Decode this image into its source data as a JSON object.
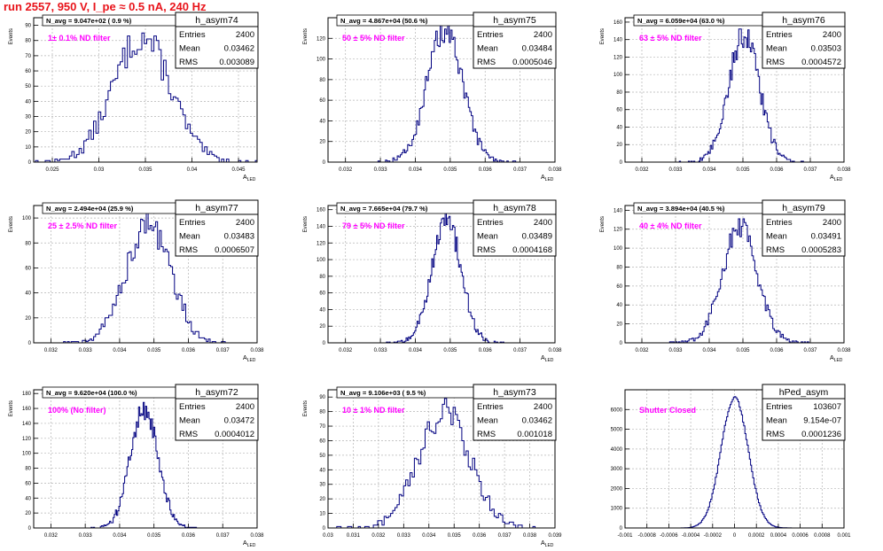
{
  "page": {
    "title": "run 2557,   950 V, I_pe ≈ 0.5 nA, 240 Hz",
    "colors": {
      "title": "#e8141b",
      "annotation": "#ff00ff",
      "histogram": "#000080",
      "grid": "#b4b4b4"
    }
  },
  "chart_data": [
    {
      "type": "histogram",
      "name": "h_asym74",
      "navg": "N_avg = 9.047e+02 ( 0.9 %)",
      "label": "1± 0.1% ND filter",
      "stats": {
        "entries": "2400",
        "mean": "0.03462",
        "rms": "0.003089"
      },
      "xlabel": "A_LED",
      "ylabel": "Events",
      "xlim": [
        0.023,
        0.047
      ],
      "ylim": [
        0,
        95
      ],
      "xticks": [
        "0.025",
        "0.03",
        "0.035",
        "0.04",
        "0.045"
      ],
      "xtick_values": [
        0.025,
        0.03,
        0.035,
        0.04,
        0.045
      ],
      "yticks": [
        "0",
        "10",
        "20",
        "30",
        "40",
        "50",
        "60",
        "70",
        "80",
        "90"
      ],
      "ytick_values": [
        0,
        10,
        20,
        30,
        40,
        50,
        60,
        70,
        80,
        90
      ],
      "dist": {
        "mean": 0.03462,
        "sigma": 0.003089,
        "peak": 82,
        "nbins": 100
      }
    },
    {
      "type": "histogram",
      "name": "h_asym75",
      "navg": "N_avg = 4.867e+04 (50.6 %)",
      "label": "50 ± 5% ND filter",
      "stats": {
        "entries": "2400",
        "mean": "0.03484",
        "rms": "0.0005046"
      },
      "xlabel": "A_LED",
      "ylabel": "Events",
      "xlim": [
        0.0315,
        0.038
      ],
      "ylim": [
        0,
        140
      ],
      "xticks": [
        "0.032",
        "0.033",
        "0.034",
        "0.035",
        "0.036",
        "0.037",
        "0.038"
      ],
      "xtick_values": [
        0.032,
        0.033,
        0.034,
        0.035,
        0.036,
        0.037,
        0.038
      ],
      "yticks": [
        "0",
        "20",
        "40",
        "60",
        "80",
        "100",
        "120"
      ],
      "ytick_values": [
        0,
        20,
        40,
        60,
        80,
        100,
        120
      ],
      "dist": {
        "mean": 0.03484,
        "sigma": 0.0005046,
        "peak": 128,
        "nbins": 100
      }
    },
    {
      "type": "histogram",
      "name": "h_asym76",
      "navg": "N_avg = 6.059e+04 (63.0 %)",
      "label": "63 ± 5% ND filter",
      "stats": {
        "entries": "2400",
        "mean": "0.03503",
        "rms": "0.0004572"
      },
      "xlabel": "A_LED",
      "ylabel": "Events",
      "xlim": [
        0.0315,
        0.038
      ],
      "ylim": [
        0,
        165
      ],
      "xticks": [
        "0.032",
        "0.033",
        "0.034",
        "0.035",
        "0.036",
        "0.037",
        "0.038"
      ],
      "xtick_values": [
        0.032,
        0.033,
        0.034,
        0.035,
        0.036,
        0.037,
        0.038
      ],
      "yticks": [
        "0",
        "20",
        "40",
        "60",
        "80",
        "100",
        "120",
        "140",
        "160"
      ],
      "ytick_values": [
        0,
        20,
        40,
        60,
        80,
        100,
        120,
        140,
        160
      ],
      "dist": {
        "mean": 0.03503,
        "sigma": 0.0004572,
        "peak": 145,
        "nbins": 100
      }
    },
    {
      "type": "histogram",
      "name": "h_asym77",
      "navg": "N_avg = 2.494e+04 (25.9 %)",
      "label": "25 ± 2.5% ND filter",
      "stats": {
        "entries": "2400",
        "mean": "0.03483",
        "rms": "0.0006507"
      },
      "xlabel": "A_LED",
      "ylabel": "Events",
      "xlim": [
        0.0315,
        0.038
      ],
      "ylim": [
        0,
        110
      ],
      "xticks": [
        "0.032",
        "0.033",
        "0.034",
        "0.035",
        "0.036",
        "0.037",
        "0.038"
      ],
      "xtick_values": [
        0.032,
        0.033,
        0.034,
        0.035,
        0.036,
        0.037,
        0.038
      ],
      "yticks": [
        "0",
        "20",
        "40",
        "60",
        "80",
        "100"
      ],
      "ytick_values": [
        0,
        20,
        40,
        60,
        80,
        100
      ],
      "dist": {
        "mean": 0.03483,
        "sigma": 0.0006507,
        "peak": 95,
        "nbins": 100
      }
    },
    {
      "type": "histogram",
      "name": "h_asym78",
      "navg": "N_avg = 7.665e+04 (79.7 %)",
      "label": "79 ± 5% ND filter",
      "stats": {
        "entries": "2400",
        "mean": "0.03489",
        "rms": "0.0004168"
      },
      "xlabel": "A_LED",
      "ylabel": "Events",
      "xlim": [
        0.0315,
        0.038
      ],
      "ylim": [
        0,
        165
      ],
      "xticks": [
        "0.032",
        "0.033",
        "0.034",
        "0.035",
        "0.036",
        "0.037",
        "0.038"
      ],
      "xtick_values": [
        0.032,
        0.033,
        0.034,
        0.035,
        0.036,
        0.037,
        0.038
      ],
      "yticks": [
        "0",
        "20",
        "40",
        "60",
        "80",
        "100",
        "120",
        "140",
        "160"
      ],
      "ytick_values": [
        0,
        20,
        40,
        60,
        80,
        100,
        120,
        140,
        160
      ],
      "dist": {
        "mean": 0.03489,
        "sigma": 0.0004168,
        "peak": 150,
        "nbins": 100
      }
    },
    {
      "type": "histogram",
      "name": "h_asym79",
      "navg": "N_avg = 3.894e+04 (40.5 %)",
      "label": "40 ± 4% ND filter",
      "stats": {
        "entries": "2400",
        "mean": "0.03491",
        "rms": "0.0005283"
      },
      "xlabel": "A_LED",
      "ylabel": "Events",
      "xlim": [
        0.0315,
        0.038
      ],
      "ylim": [
        0,
        145
      ],
      "xticks": [
        "0.032",
        "0.033",
        "0.034",
        "0.035",
        "0.036",
        "0.037",
        "0.038"
      ],
      "xtick_values": [
        0.032,
        0.033,
        0.034,
        0.035,
        0.036,
        0.037,
        0.038
      ],
      "yticks": [
        "0",
        "20",
        "40",
        "60",
        "80",
        "100",
        "120",
        "140"
      ],
      "ytick_values": [
        0,
        20,
        40,
        60,
        80,
        100,
        120,
        140
      ],
      "dist": {
        "mean": 0.03491,
        "sigma": 0.0005283,
        "peak": 122,
        "nbins": 100
      }
    },
    {
      "type": "histogram",
      "name": "h_asym72",
      "navg": "N_avg = 9.620e+04 (100.0 %)",
      "label": "100% (No filter)",
      "stats": {
        "entries": "2400",
        "mean": "0.03472",
        "rms": "0.0004012"
      },
      "xlabel": "A_LED",
      "ylabel": "Events",
      "xlim": [
        0.0315,
        0.038
      ],
      "ylim": [
        0,
        185
      ],
      "xticks": [
        "0.032",
        "0.033",
        "0.034",
        "0.035",
        "0.036",
        "0.037",
        "0.038"
      ],
      "xtick_values": [
        0.032,
        0.033,
        0.034,
        0.035,
        0.036,
        0.037,
        0.038
      ],
      "yticks": [
        "0",
        "20",
        "40",
        "60",
        "80",
        "100",
        "120",
        "140",
        "160",
        "180"
      ],
      "ytick_values": [
        0,
        20,
        40,
        60,
        80,
        100,
        120,
        140,
        160,
        180
      ],
      "dist": {
        "mean": 0.03472,
        "sigma": 0.0004012,
        "peak": 160,
        "nbins": 100
      }
    },
    {
      "type": "histogram",
      "name": "h_asym73",
      "navg": "N_avg = 9.106e+03 ( 9.5 %)",
      "label": "10 ± 1% ND filter",
      "stats": {
        "entries": "2400",
        "mean": "0.03462",
        "rms": "0.001018"
      },
      "xlabel": "A_LED",
      "ylabel": "Events",
      "xlim": [
        0.03,
        0.039
      ],
      "ylim": [
        0,
        95
      ],
      "xticks": [
        "0.03",
        "0.031",
        "0.032",
        "0.033",
        "0.034",
        "0.035",
        "0.036",
        "0.037",
        "0.038",
        "0.039"
      ],
      "xtick_values": [
        0.03,
        0.031,
        0.032,
        0.033,
        0.034,
        0.035,
        0.036,
        0.037,
        0.038,
        0.039
      ],
      "yticks": [
        "0",
        "10",
        "20",
        "30",
        "40",
        "50",
        "60",
        "70",
        "80",
        "90"
      ],
      "ytick_values": [
        0,
        10,
        20,
        30,
        40,
        50,
        60,
        70,
        80,
        90
      ],
      "dist": {
        "mean": 0.03462,
        "sigma": 0.001018,
        "peak": 80,
        "nbins": 100
      }
    },
    {
      "type": "histogram",
      "name": "hPed_asym",
      "navg": "",
      "label": "Shutter Closed",
      "stats": {
        "entries": "103607",
        "mean": "9.154e-07",
        "rms": "0.0001236"
      },
      "xlabel": "",
      "ylabel": "",
      "xlim": [
        -0.001,
        0.001
      ],
      "ylim": [
        0,
        7000
      ],
      "xticks": [
        "-0.001",
        "-0.0008",
        "-0.0006",
        "-0.0004",
        "-0.0002",
        "0",
        "0.0002",
        "0.0004",
        "0.0006",
        "0.0008",
        "0.001"
      ],
      "xtick_values": [
        -0.001,
        -0.0008,
        -0.0006,
        -0.0004,
        -0.0002,
        0,
        0.0002,
        0.0004,
        0.0006,
        0.0008,
        0.001
      ],
      "yticks": [
        "0",
        "1000",
        "2000",
        "3000",
        "4000",
        "5000",
        "6000"
      ],
      "ytick_values": [
        0,
        1000,
        2000,
        3000,
        4000,
        5000,
        6000
      ],
      "dist": {
        "mean": 9.2e-07,
        "sigma": 0.0001236,
        "peak": 6600,
        "nbins": 100
      }
    }
  ]
}
